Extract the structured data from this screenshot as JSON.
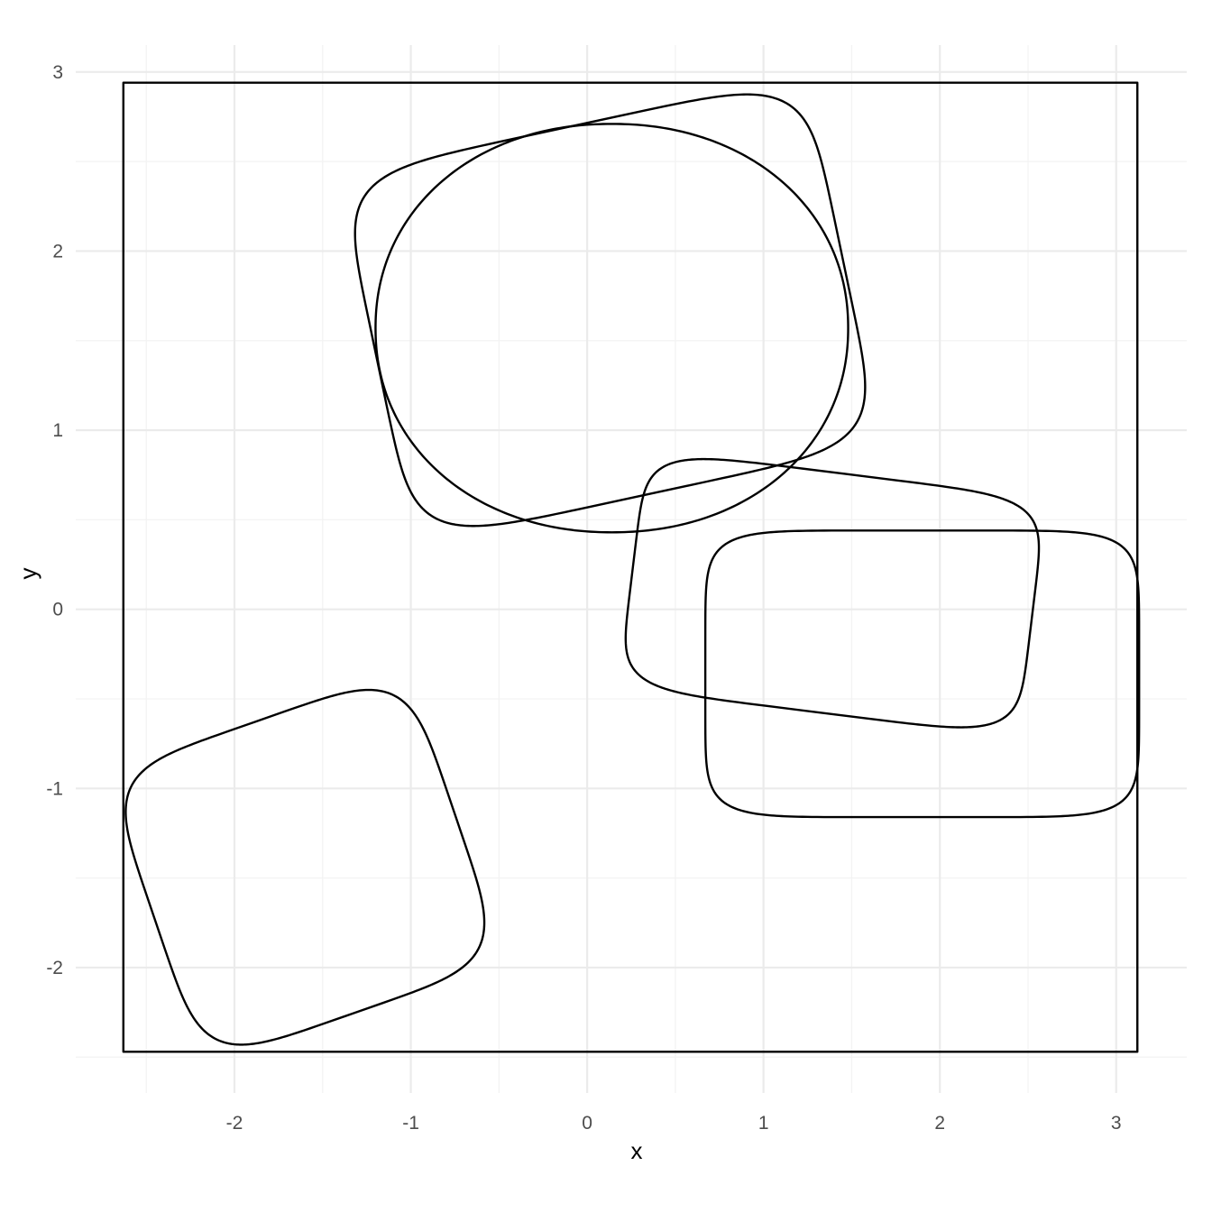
{
  "chart_data": {
    "type": "line",
    "xlabel": "x",
    "ylabel": "y",
    "xlim": [
      -2.9,
      3.4
    ],
    "ylim": [
      -2.7,
      3.15
    ],
    "x_ticks": [
      -2,
      -1,
      0,
      1,
      2,
      3
    ],
    "x_tick_labels": [
      "-2",
      "-1",
      "0",
      "1",
      "2",
      "3"
    ],
    "y_ticks": [
      -2,
      -1,
      0,
      1,
      2,
      3
    ],
    "y_tick_labels": [
      "-2",
      "-1",
      "0",
      "1",
      "2",
      "3"
    ],
    "grid": true,
    "line_color": "#000000",
    "shapes": [
      {
        "kind": "rectangle",
        "x0": -2.63,
        "x1": 3.12,
        "y0": -2.47,
        "y1": 2.94
      },
      {
        "kind": "superellipse",
        "cx": 0.13,
        "cy": 1.67,
        "a": 1.35,
        "b": 1.05,
        "rotation_deg": 12,
        "exponent": 6
      },
      {
        "kind": "superellipse",
        "cx": 0.14,
        "cy": 1.57,
        "a": 1.34,
        "b": 1.14,
        "rotation_deg": 0,
        "exponent": 2.1
      },
      {
        "kind": "superellipse",
        "cx": 1.39,
        "cy": 0.09,
        "a": 1.14,
        "b": 0.67,
        "rotation_deg": -7,
        "exponent": 6
      },
      {
        "kind": "superellipse",
        "cx": 1.9,
        "cy": -0.36,
        "a": 1.23,
        "b": 0.8,
        "rotation_deg": 0,
        "exponent": 7
      },
      {
        "kind": "superellipse",
        "cx": -1.6,
        "cy": -1.44,
        "a": 0.9,
        "b": 0.86,
        "rotation_deg": 19,
        "exponent": 5
      }
    ]
  }
}
